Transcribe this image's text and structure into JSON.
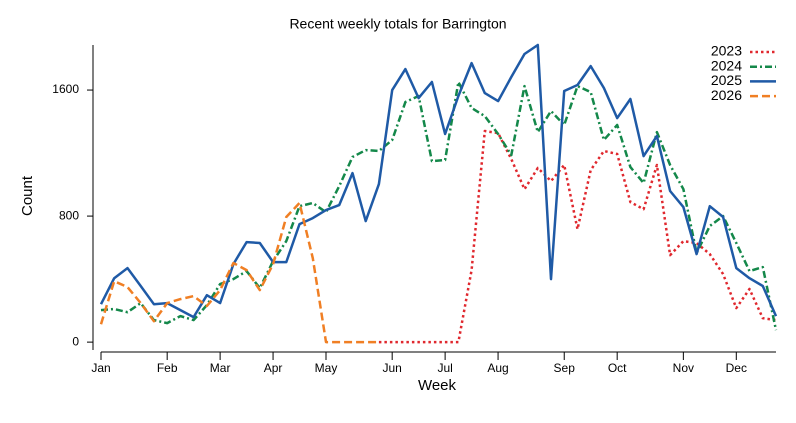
{
  "chart_data": {
    "type": "line",
    "title": "Recent weekly totals for Barrington",
    "xlabel": "Week",
    "ylabel": "Count",
    "x": [
      1,
      2,
      3,
      4,
      5,
      6,
      7,
      8,
      9,
      10,
      11,
      12,
      13,
      14,
      15,
      16,
      17,
      18,
      19,
      20,
      21,
      22,
      23,
      24,
      25,
      26,
      27,
      28,
      29,
      30,
      31,
      32,
      33,
      34,
      35,
      36,
      37,
      38,
      39,
      40,
      41,
      42,
      43,
      44,
      45,
      46,
      47,
      48,
      49,
      50,
      51,
      52
    ],
    "xlim": [
      1,
      52
    ],
    "xticks": [
      {
        "value": 1,
        "label": "Jan"
      },
      {
        "value": 6,
        "label": "Feb"
      },
      {
        "value": 10,
        "label": "Mar"
      },
      {
        "value": 14,
        "label": "Apr"
      },
      {
        "value": 18,
        "label": "May"
      },
      {
        "value": 23,
        "label": "Jun"
      },
      {
        "value": 27,
        "label": "Jul"
      },
      {
        "value": 31,
        "label": "Aug"
      },
      {
        "value": 36,
        "label": "Sep"
      },
      {
        "value": 40,
        "label": "Oct"
      },
      {
        "value": 45,
        "label": "Nov"
      },
      {
        "value": 49,
        "label": "Dec"
      }
    ],
    "ylim": [
      -50,
      1886
    ],
    "yticks": [
      0,
      800,
      1600
    ],
    "legend": "upper right",
    "series": [
      {
        "name": "2023",
        "color": "#e0282e",
        "dash": "dotted",
        "values": [
          null,
          null,
          null,
          null,
          null,
          null,
          null,
          null,
          null,
          null,
          null,
          null,
          null,
          null,
          null,
          null,
          null,
          null,
          null,
          null,
          null,
          0,
          0,
          0,
          0,
          0,
          0,
          0,
          457,
          1340,
          1327,
          1162,
          971,
          1105,
          1022,
          1124,
          717,
          1092,
          1213,
          1194,
          889,
          844,
          1124,
          552,
          641,
          629,
          559,
          432,
          216,
          337,
          152,
          140
        ]
      },
      {
        "name": "2024",
        "color": "#14884a",
        "dash": "dashdot",
        "values": [
          203,
          210,
          190,
          248,
          140,
          121,
          165,
          140,
          235,
          368,
          400,
          451,
          343,
          514,
          641,
          863,
          883,
          825,
          990,
          1175,
          1219,
          1213,
          1283,
          1524,
          1562,
          1149,
          1156,
          1651,
          1486,
          1435,
          1321,
          1187,
          1625,
          1333,
          1467,
          1378,
          1625,
          1587,
          1283,
          1378,
          1111,
          1010,
          1333,
          1124,
          971,
          565,
          737,
          800,
          629,
          451,
          476,
          76
        ]
      },
      {
        "name": "2025",
        "color": "#1f5aa6",
        "dash": "solid",
        "values": [
          241,
          406,
          470,
          356,
          241,
          248,
          203,
          159,
          298,
          248,
          495,
          635,
          629,
          508,
          508,
          749,
          787,
          838,
          870,
          1073,
          768,
          1003,
          1600,
          1733,
          1549,
          1651,
          1321,
          1562,
          1771,
          1581,
          1530,
          1683,
          1829,
          1886,
          400,
          1594,
          1632,
          1752,
          1613,
          1422,
          1543,
          1181,
          1308,
          959,
          857,
          559,
          863,
          794,
          470,
          406,
          356,
          165
        ]
      },
      {
        "name": "2026",
        "color": "#f07f24",
        "dash": "dashed",
        "values": [
          114,
          387,
          349,
          248,
          133,
          248,
          273,
          292,
          229,
          330,
          502,
          457,
          330,
          495,
          794,
          883,
          533,
          0,
          0,
          0,
          0,
          0,
          null,
          null,
          null,
          null,
          null,
          null,
          null,
          null,
          null,
          null,
          null,
          null,
          null,
          null,
          null,
          null,
          null,
          null,
          null,
          null,
          null,
          null,
          null,
          null,
          null,
          null,
          null,
          null,
          null,
          null
        ]
      }
    ]
  }
}
